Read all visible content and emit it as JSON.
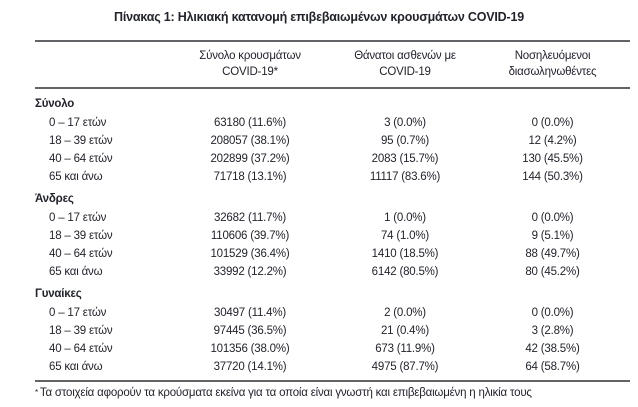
{
  "title": "Πίνακας 1: Ηλικιακή κατανομή επιβεβαιωμένων κρουσμάτων COVID-19",
  "table": {
    "columns": [
      {
        "line1": "Σύνολο κρουσμάτων",
        "line2": "COVID-19*"
      },
      {
        "line1": "Θάνατοι ασθενών με",
        "line2": "COVID-19"
      },
      {
        "line1": "Νοσηλευόμενοι",
        "line2": "διασωληνωθέντες"
      }
    ],
    "sections": [
      {
        "label": "Σύνολο",
        "rows": [
          {
            "label": "0 – 17 ετών",
            "cases": "63180 (11.6%)",
            "deaths": "3 (0.0%)",
            "intubated": "0 (0.0%)"
          },
          {
            "label": "18 – 39 ετών",
            "cases": "208057 (38.1%)",
            "deaths": "95 (0.7%)",
            "intubated": "12 (4.2%)"
          },
          {
            "label": "40 – 64 ετών",
            "cases": "202899 (37.2%)",
            "deaths": "2083 (15.7%)",
            "intubated": "130 (45.5%)"
          },
          {
            "label": "65 και άνω",
            "cases": "71718 (13.1%)",
            "deaths": "11117 (83.6%)",
            "intubated": "144 (50.3%)"
          }
        ]
      },
      {
        "label": "Άνδρες",
        "rows": [
          {
            "label": "0 – 17 ετών",
            "cases": "32682 (11.7%)",
            "deaths": "1 (0.0%)",
            "intubated": "0 (0.0%)"
          },
          {
            "label": "18 – 39 ετών",
            "cases": "110606 (39.7%)",
            "deaths": "74 (1.0%)",
            "intubated": "9 (5.1%)"
          },
          {
            "label": "40 – 64 ετών",
            "cases": "101529 (36.4%)",
            "deaths": "1410 (18.5%)",
            "intubated": "88 (49.7%)"
          },
          {
            "label": "65 και άνω",
            "cases": "33992 (12.2%)",
            "deaths": "6142 (80.5%)",
            "intubated": "80 (45.2%)"
          }
        ]
      },
      {
        "label": "Γυναίκες",
        "rows": [
          {
            "label": "0 – 17 ετών",
            "cases": "30497 (11.4%)",
            "deaths": "2 (0.0%)",
            "intubated": "0 (0.0%)"
          },
          {
            "label": "18 – 39 ετών",
            "cases": "97445 (36.5%)",
            "deaths": "21 (0.4%)",
            "intubated": "3 (2.8%)"
          },
          {
            "label": "40 – 64 ετών",
            "cases": "101356 (38.0%)",
            "deaths": "673 (11.9%)",
            "intubated": "42 (38.5%)"
          },
          {
            "label": "65 και άνω",
            "cases": "37720 (14.1%)",
            "deaths": "4975 (87.7%)",
            "intubated": "64 (58.7%)"
          }
        ]
      }
    ],
    "footnote_marker": "*",
    "footnote": "Τα στοιχεία αφορούν τα κρούσματα εκείνα για τα οποία είναι γνωστή και επιβεβαιωμένη η ηλικία τους"
  },
  "colors": {
    "text": "#22242c",
    "rule": "#636467",
    "background": "#ffffff"
  }
}
